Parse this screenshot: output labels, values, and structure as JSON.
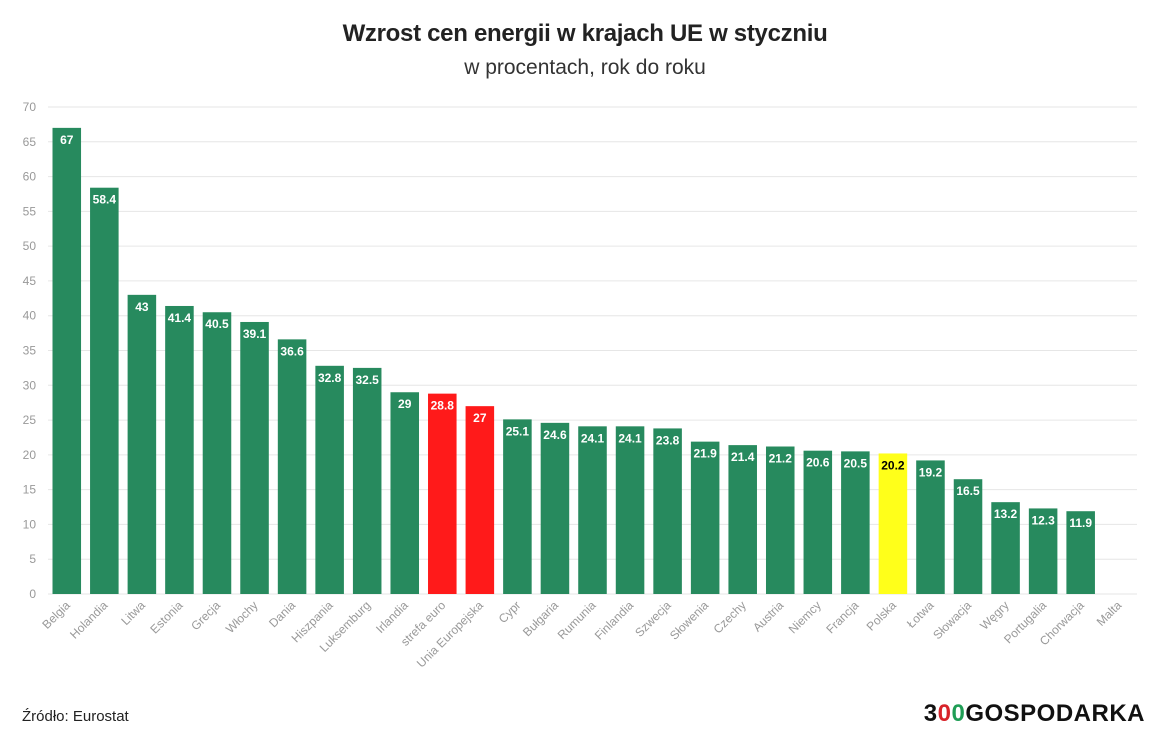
{
  "chart_data": {
    "type": "bar",
    "title": "Wzrost cen energii w krajach UE w styczniu",
    "subtitle": "w procentach, rok do roku",
    "xlabel": "",
    "ylabel": "",
    "ylim": [
      0,
      70
    ],
    "yticks": [
      0,
      5,
      10,
      15,
      20,
      25,
      30,
      35,
      40,
      45,
      50,
      55,
      60,
      65,
      70
    ],
    "grid": true,
    "categories": [
      "Belgia",
      "Holandia",
      "Litwa",
      "Estonia",
      "Grecja",
      "Włochy",
      "Dania",
      "Hiszpania",
      "Luksemburg",
      "Irlandia",
      "strefa euro",
      "Unia Europejska",
      "Cypr",
      "Bułgaria",
      "Rumunia",
      "Finlandia",
      "Szwecja",
      "Słowenia",
      "Czechy",
      "Austria",
      "Niemcy",
      "Francja",
      "Polska",
      "Łotwa",
      "Słowacja",
      "Węgry",
      "Portugalia",
      "Chorwacja",
      "Malta"
    ],
    "values": [
      67,
      58.4,
      43,
      41.4,
      40.5,
      39.1,
      36.6,
      32.8,
      32.5,
      29,
      28.8,
      27,
      25.1,
      24.6,
      24.1,
      24.1,
      23.8,
      21.9,
      21.4,
      21.2,
      20.6,
      20.5,
      20.2,
      19.2,
      16.5,
      13.2,
      12.3,
      11.9,
      null
    ],
    "labels": [
      "67",
      "58.4",
      "43",
      "41.4",
      "40.5",
      "39.1",
      "36.6",
      "32.8",
      "32.5",
      "29",
      "28.8",
      "27",
      "25.1",
      "24.6",
      "24.1",
      "24.1",
      "23.8",
      "21.9",
      "21.4",
      "21.2",
      "20.6",
      "20.5",
      "20.2",
      "19.2",
      "16.5",
      "13.2",
      "12.3",
      "11.9",
      ""
    ],
    "bar_colors": [
      "#278a5e",
      "#278a5e",
      "#278a5e",
      "#278a5e",
      "#278a5e",
      "#278a5e",
      "#278a5e",
      "#278a5e",
      "#278a5e",
      "#278a5e",
      "#ff1a1a",
      "#ff1a1a",
      "#278a5e",
      "#278a5e",
      "#278a5e",
      "#278a5e",
      "#278a5e",
      "#278a5e",
      "#278a5e",
      "#278a5e",
      "#278a5e",
      "#278a5e",
      "#ffff1a",
      "#278a5e",
      "#278a5e",
      "#278a5e",
      "#278a5e",
      "#278a5e",
      "#278a5e"
    ]
  },
  "footer": {
    "source": "Źródło: Eurostat",
    "logo_part1": "3",
    "logo_o1": "0",
    "logo_o2": "0",
    "logo_part2": "GOSPODARKA"
  },
  "colors": {
    "grid": "#e6e6e6",
    "tick_label": "#999999",
    "label_light": "#ffffff",
    "label_dark": "#000000"
  }
}
